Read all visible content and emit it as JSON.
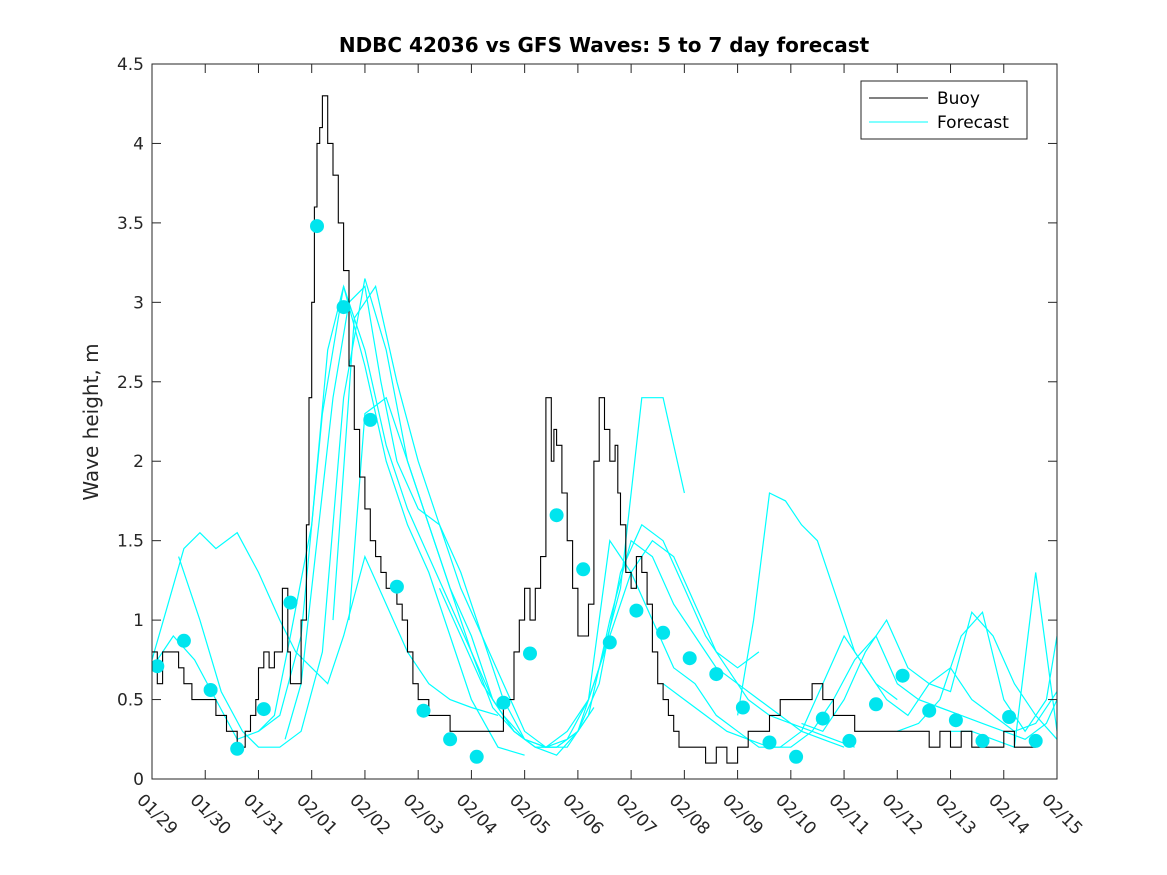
{
  "chart_data": {
    "type": "line",
    "title": "NDBC 42036 vs GFS Waves: 5 to 7 day forecast",
    "xlabel": "",
    "ylabel": "Wave height, m",
    "xlim": [
      0,
      17
    ],
    "ylim": [
      0,
      4.5
    ],
    "yticks": [
      0,
      0.5,
      1,
      1.5,
      2,
      2.5,
      3,
      3.5,
      4,
      4.5
    ],
    "ytick_labels": [
      "0",
      "0.5",
      "1",
      "1.5",
      "2",
      "2.5",
      "3",
      "3.5",
      "4",
      "4.5"
    ],
    "xticks": [
      0,
      1,
      2,
      3,
      4,
      5,
      6,
      7,
      8,
      9,
      10,
      11,
      12,
      13,
      14,
      15,
      16,
      17
    ],
    "xtick_labels": [
      "01/29",
      "01/30",
      "01/31",
      "02/01",
      "02/02",
      "02/03",
      "02/04",
      "02/05",
      "02/06",
      "02/07",
      "02/08",
      "02/09",
      "02/10",
      "02/11",
      "02/12",
      "02/13",
      "02/14",
      "02/15"
    ],
    "legend": {
      "position": "top-right",
      "entries": [
        "Buoy",
        "Forecast"
      ]
    },
    "colors": {
      "buoy": "#000000",
      "forecast": "#00ffff",
      "markers": "#00e5ee",
      "axes": "#262626"
    },
    "buoy": {
      "name": "Buoy",
      "x": [
        0,
        0.1,
        0.2,
        0.35,
        0.5,
        0.6,
        0.75,
        0.9,
        1.0,
        1.2,
        1.4,
        1.6,
        1.75,
        1.85,
        1.95,
        2.0,
        2.1,
        2.2,
        2.3,
        2.45,
        2.55,
        2.6,
        2.7,
        2.8,
        2.9,
        2.95,
        3.0,
        3.05,
        3.1,
        3.15,
        3.2,
        3.3,
        3.4,
        3.5,
        3.6,
        3.7,
        3.8,
        3.9,
        4.0,
        4.1,
        4.2,
        4.3,
        4.4,
        4.5,
        4.6,
        4.7,
        4.8,
        4.9,
        5.0,
        5.2,
        5.4,
        5.6,
        5.8,
        6.0,
        6.2,
        6.4,
        6.6,
        6.8,
        6.9,
        7.0,
        7.1,
        7.2,
        7.3,
        7.4,
        7.5,
        7.55,
        7.6,
        7.7,
        7.8,
        7.9,
        8.0,
        8.1,
        8.2,
        8.3,
        8.4,
        8.5,
        8.6,
        8.7,
        8.75,
        8.8,
        8.9,
        9.0,
        9.1,
        9.2,
        9.3,
        9.4,
        9.5,
        9.6,
        9.7,
        9.8,
        9.9,
        10.0,
        10.2,
        10.4,
        10.6,
        10.8,
        11.0,
        11.2,
        11.4,
        11.6,
        11.8,
        12.0,
        12.2,
        12.4,
        12.6,
        12.8,
        13.0,
        13.2,
        13.4,
        13.6,
        13.8,
        14.0,
        14.2,
        14.4,
        14.6,
        14.8,
        15.0,
        15.2,
        15.4,
        15.6,
        15.8,
        16.0,
        16.2,
        16.4,
        16.6
      ],
      "values": [
        0.8,
        0.6,
        0.8,
        0.8,
        0.7,
        0.6,
        0.5,
        0.5,
        0.5,
        0.4,
        0.3,
        0.2,
        0.3,
        0.4,
        0.5,
        0.7,
        0.8,
        0.7,
        0.8,
        1.2,
        0.8,
        0.6,
        0.6,
        1.0,
        1.6,
        2.4,
        3.0,
        3.6,
        4.0,
        4.1,
        4.3,
        4.0,
        3.8,
        3.5,
        3.2,
        2.6,
        2.2,
        1.9,
        1.7,
        1.5,
        1.4,
        1.3,
        1.2,
        1.2,
        1.1,
        1.0,
        0.8,
        0.6,
        0.5,
        0.4,
        0.4,
        0.3,
        0.3,
        0.3,
        0.3,
        0.3,
        0.5,
        0.8,
        1.0,
        1.2,
        1.0,
        1.2,
        1.4,
        2.4,
        2.0,
        2.2,
        2.1,
        1.8,
        1.5,
        1.2,
        0.9,
        0.9,
        1.1,
        2.0,
        2.4,
        2.2,
        2.0,
        2.1,
        1.8,
        1.6,
        1.3,
        1.2,
        1.4,
        1.3,
        1.1,
        0.8,
        0.6,
        0.5,
        0.4,
        0.3,
        0.2,
        0.2,
        0.2,
        0.1,
        0.2,
        0.1,
        0.2,
        0.3,
        0.3,
        0.4,
        0.5,
        0.5,
        0.5,
        0.6,
        0.5,
        0.4,
        0.4,
        0.3,
        0.3,
        0.3,
        0.3,
        0.3,
        0.3,
        0.3,
        0.2,
        0.3,
        0.2,
        0.3,
        0.2,
        0.2,
        0.2,
        0.3,
        0.2,
        0.2,
        0.2
      ]
    },
    "forecast": {
      "name": "Forecast",
      "series": [
        {
          "x": [
            0,
            0.3,
            0.6,
            0.9,
            1.2,
            1.6,
            2.0,
            2.4,
            2.7,
            3.0,
            3.3,
            3.6,
            4.0,
            4.4,
            4.8,
            5.2,
            5.6,
            6.0,
            6.5
          ],
          "values": [
            0.75,
            1.1,
            1.45,
            1.55,
            1.45,
            1.55,
            1.3,
            1.0,
            0.8,
            0.7,
            0.6,
            0.9,
            1.4,
            1.1,
            0.8,
            0.6,
            0.5,
            0.45,
            0.4
          ]
        },
        {
          "x": [
            0,
            0.4,
            0.8,
            1.2,
            1.6,
            2.0,
            2.4,
            2.8,
            3.2,
            3.6,
            4.0,
            4.4,
            4.8,
            5.2,
            5.6,
            6.0,
            6.5,
            7.0
          ],
          "values": [
            0.7,
            0.9,
            0.75,
            0.5,
            0.25,
            0.3,
            0.4,
            0.9,
            2.3,
            3.1,
            2.6,
            2.0,
            1.6,
            1.3,
            0.9,
            0.5,
            0.2,
            0.15
          ]
        },
        {
          "x": [
            0.5,
            0.9,
            1.3,
            1.7,
            2.0,
            2.4,
            2.8,
            3.2,
            3.6,
            4.0,
            4.4,
            4.8,
            5.2,
            5.6,
            6.0,
            6.4,
            6.8,
            7.2,
            7.6,
            8.0,
            8.4,
            8.8,
            9.2,
            9.6,
            10.0
          ],
          "values": [
            1.4,
            1.0,
            0.55,
            0.3,
            0.2,
            0.2,
            0.3,
            0.8,
            2.4,
            3.15,
            2.7,
            2.0,
            1.6,
            1.2,
            0.8,
            0.45,
            0.3,
            0.2,
            0.15,
            0.3,
            0.7,
            1.2,
            2.4,
            2.4,
            1.8
          ]
        },
        {
          "x": [
            2.0,
            2.3,
            2.6,
            3.0,
            3.3,
            3.6,
            4.0,
            4.4,
            4.8,
            5.2,
            5.6,
            6.0,
            6.4,
            6.8,
            7.2,
            7.6,
            8.0,
            8.3
          ],
          "values": [
            0.3,
            0.4,
            0.9,
            1.6,
            2.7,
            3.1,
            2.7,
            2.1,
            1.7,
            1.4,
            1.1,
            0.8,
            0.5,
            0.3,
            0.2,
            0.2,
            0.3,
            0.45
          ]
        },
        {
          "x": [
            2.5,
            2.8,
            3.1,
            3.4,
            3.7,
            4.0,
            4.3,
            4.6,
            5.0,
            5.4,
            5.8,
            6.2,
            6.6,
            7.0,
            7.4,
            7.8,
            8.2,
            8.6,
            9.0,
            9.4,
            9.8,
            10.2,
            10.6,
            11.0,
            11.4
          ],
          "values": [
            0.25,
            0.6,
            1.5,
            2.4,
            3.0,
            3.1,
            2.5,
            2.0,
            1.7,
            1.6,
            1.2,
            0.9,
            0.5,
            0.25,
            0.2,
            0.25,
            0.5,
            0.9,
            1.3,
            1.5,
            1.4,
            1.1,
            0.8,
            0.7,
            0.8
          ]
        },
        {
          "x": [
            3.4,
            3.8,
            4.2,
            4.6,
            5.0,
            5.4,
            5.8,
            6.2,
            6.6,
            7.0,
            7.4,
            7.8,
            8.2,
            8.6,
            9.0,
            9.4,
            9.8,
            10.2,
            10.6,
            11.0,
            11.4,
            11.8,
            12.2,
            12.6,
            13.0
          ],
          "values": [
            1.0,
            2.9,
            3.1,
            2.5,
            2.0,
            1.6,
            1.3,
            0.9,
            0.6,
            0.3,
            0.2,
            0.2,
            0.4,
            1.0,
            1.5,
            1.4,
            1.1,
            0.9,
            0.7,
            0.6,
            0.5,
            0.4,
            0.3,
            0.25,
            0.2
          ]
        },
        {
          "x": [
            3.7,
            4.0,
            4.4,
            4.8,
            5.2,
            5.6,
            6.0,
            6.4,
            6.8,
            7.2,
            7.6,
            8.0,
            8.4,
            8.8,
            9.2,
            9.6,
            10.0,
            10.4,
            10.8,
            11.2,
            11.6,
            12.0,
            12.4,
            12.8,
            13.2
          ],
          "values": [
            1.0,
            2.3,
            2.4,
            2.0,
            1.6,
            1.2,
            0.9,
            0.5,
            0.3,
            0.2,
            0.2,
            0.3,
            0.6,
            1.3,
            1.6,
            1.5,
            1.2,
            0.9,
            0.7,
            0.5,
            0.4,
            0.35,
            0.3,
            0.25,
            0.2
          ]
        },
        {
          "x": [
            5.4,
            5.8,
            6.2,
            6.6,
            7.0,
            7.4,
            7.8,
            8.2,
            8.6,
            9.0,
            9.4,
            9.8,
            10.2,
            10.6,
            11.0,
            11.4,
            11.8,
            12.2,
            12.6,
            13.0,
            13.4,
            13.8,
            14.2,
            14.6,
            15.0,
            15.4,
            15.8,
            16.2,
            16.6,
            17.0
          ],
          "values": [
            1.2,
            0.9,
            0.6,
            0.4,
            0.25,
            0.2,
            0.3,
            0.5,
            1.5,
            1.3,
            1.0,
            0.7,
            0.6,
            0.4,
            0.3,
            0.2,
            0.2,
            0.3,
            0.6,
            0.9,
            0.7,
            0.5,
            0.4,
            0.6,
            0.7,
            0.5,
            0.4,
            0.3,
            0.35,
            0.55
          ]
        },
        {
          "x": [
            9.6,
            10.0,
            10.4,
            10.8,
            11.2,
            11.6,
            12.0,
            12.4,
            12.8,
            13.2,
            13.6,
            14.0,
            14.4,
            14.8,
            15.2,
            15.6,
            16.0,
            16.4,
            16.8,
            17.0
          ],
          "values": [
            0.6,
            0.5,
            0.4,
            0.3,
            0.25,
            0.2,
            0.2,
            0.3,
            0.5,
            0.75,
            0.9,
            0.6,
            0.5,
            0.45,
            0.4,
            0.35,
            0.3,
            0.25,
            0.35,
            0.5
          ]
        },
        {
          "x": [
            12.2,
            12.6,
            13.0,
            13.4,
            13.8,
            14.2,
            14.6,
            15.0,
            15.4,
            15.8,
            16.2,
            16.6,
            17.0
          ],
          "values": [
            0.35,
            0.3,
            0.5,
            0.8,
            1.0,
            0.7,
            0.6,
            0.55,
            1.05,
            0.9,
            0.6,
            0.4,
            0.25
          ]
        },
        {
          "x": [
            14.0,
            14.4,
            14.8,
            15.2,
            15.6,
            16.0,
            16.4,
            16.8,
            17.0
          ],
          "values": [
            0.3,
            0.35,
            0.5,
            0.9,
            1.05,
            0.5,
            0.3,
            0.5,
            0.9
          ]
        },
        {
          "x": [
            11.0,
            11.3,
            11.6,
            11.9,
            12.2,
            12.5,
            12.8,
            13.2,
            13.6,
            14.0
          ],
          "values": [
            0.4,
            1.0,
            1.8,
            1.75,
            1.6,
            1.5,
            1.2,
            0.8,
            0.6,
            0.5
          ]
        },
        {
          "x": [
            15.0,
            15.4,
            15.8,
            16.2,
            16.6,
            17.0
          ],
          "values": [
            0.3,
            0.3,
            0.25,
            0.2,
            1.3,
            0.3
          ]
        }
      ]
    },
    "markers": {
      "name": "Forecast points",
      "x": [
        0.1,
        0.6,
        1.1,
        1.6,
        2.1,
        2.6,
        3.1,
        3.6,
        4.1,
        4.6,
        5.1,
        5.6,
        6.1,
        6.6,
        7.1,
        7.6,
        8.1,
        8.6,
        9.1,
        9.6,
        10.1,
        10.6,
        11.1,
        11.6,
        12.1,
        12.6,
        13.1,
        13.6,
        14.1,
        14.6,
        15.1,
        15.6,
        16.1,
        16.6
      ],
      "values": [
        0.71,
        0.87,
        0.56,
        0.19,
        0.44,
        1.11,
        3.48,
        2.97,
        2.26,
        1.21,
        0.43,
        0.25,
        0.14,
        0.48,
        0.79,
        1.66,
        1.32,
        0.86,
        1.06,
        0.92,
        0.76,
        0.66,
        0.45,
        0.23,
        0.14,
        0.38,
        0.24,
        0.47,
        0.65,
        0.43,
        0.37,
        0.24,
        0.39,
        0.24
      ]
    }
  }
}
